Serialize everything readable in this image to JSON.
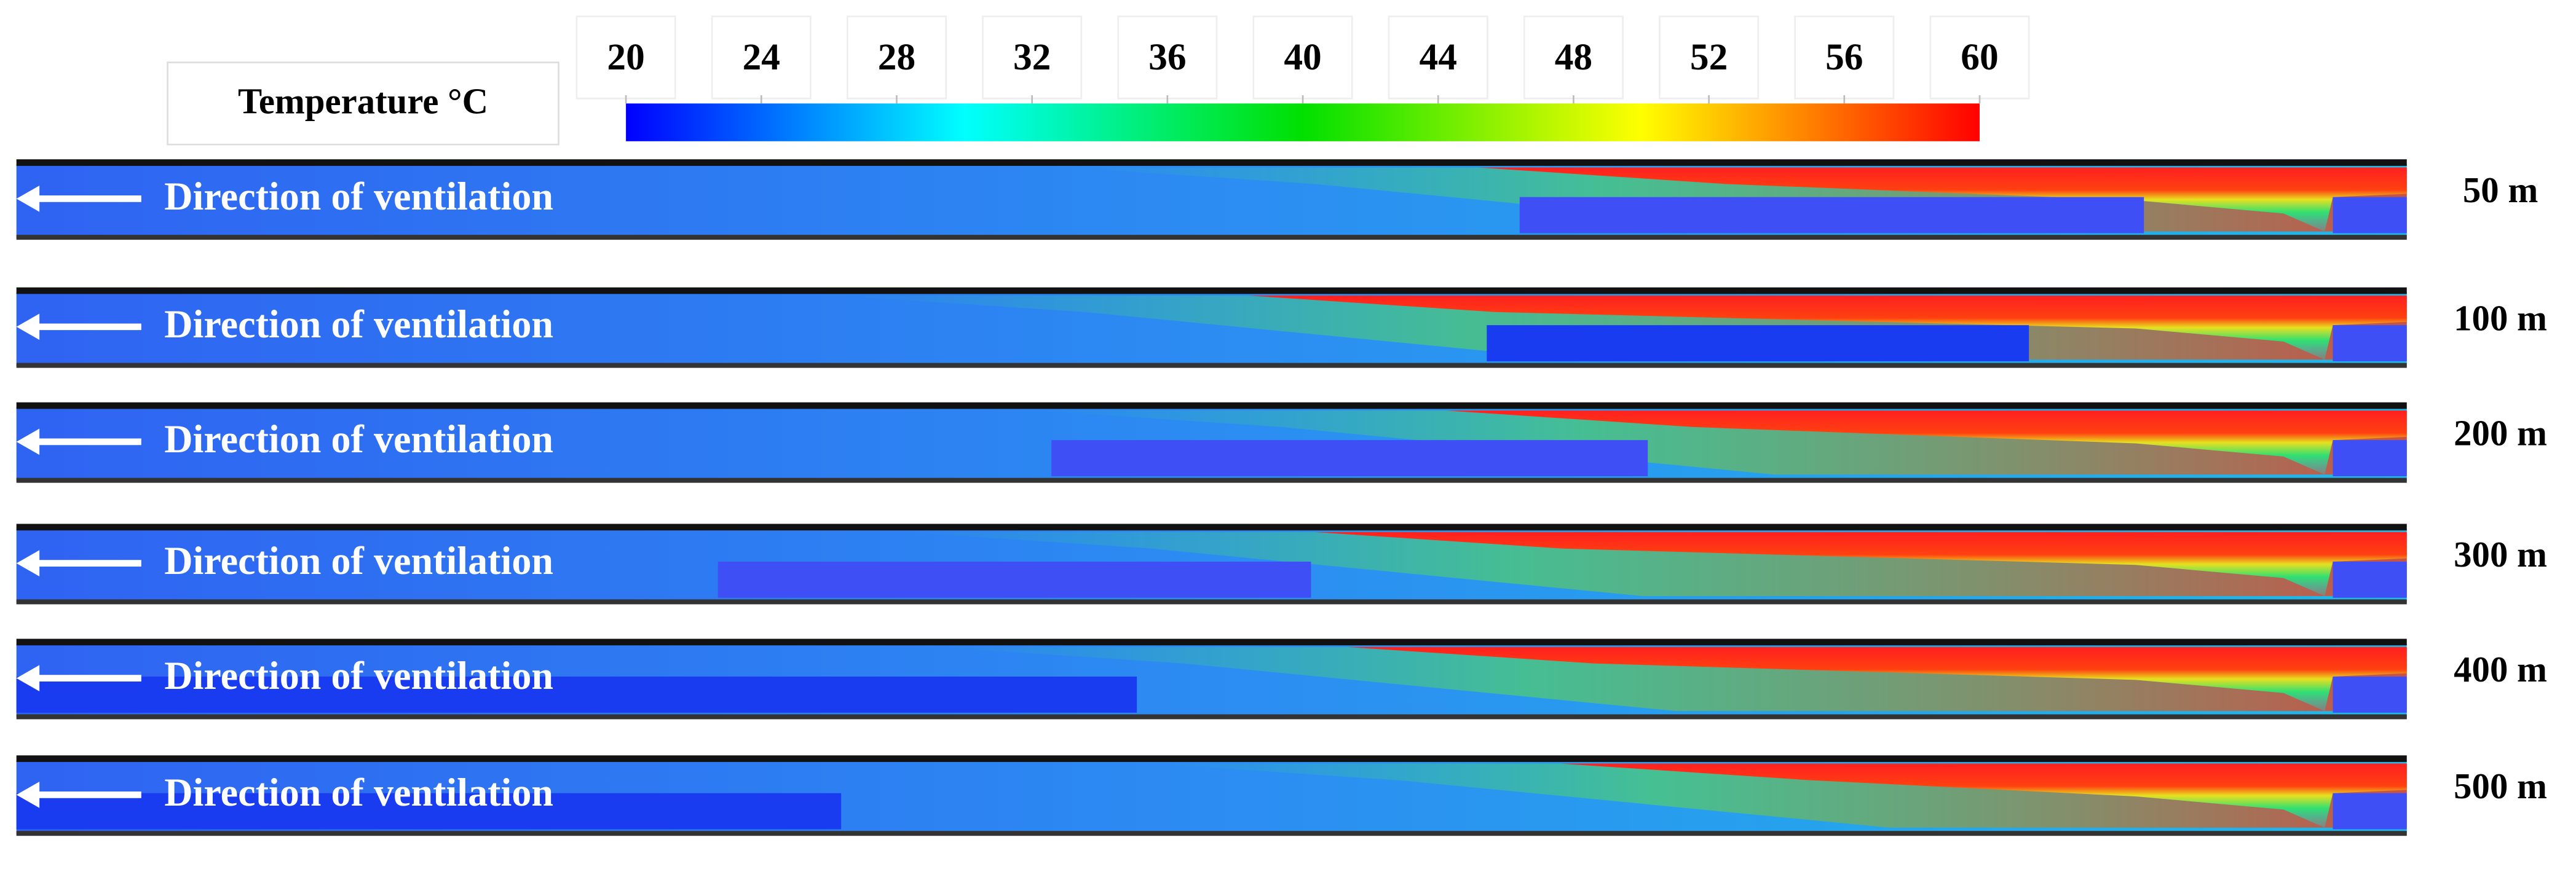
{
  "legend": {
    "title": "Temperature °C",
    "range": [
      20,
      60
    ],
    "ticks": [
      20,
      24,
      28,
      32,
      36,
      40,
      44,
      48,
      52,
      56,
      60
    ]
  },
  "panels": [
    {
      "text": "Direction of ventilation",
      "label": "50 m"
    },
    {
      "text": "Direction of ventilation",
      "label": "100 m"
    },
    {
      "text": "Direction of ventilation",
      "label": "200 m"
    },
    {
      "text": "Direction of ventilation",
      "label": "300 m"
    },
    {
      "text": "Direction of ventilation",
      "label": "400 m"
    },
    {
      "text": "Direction of ventilation",
      "label": "500 m"
    }
  ]
}
